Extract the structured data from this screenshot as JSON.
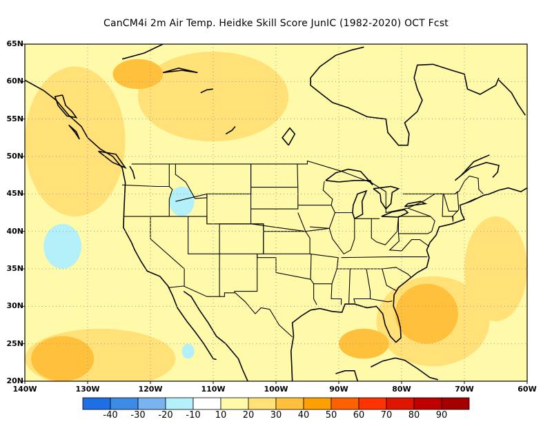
{
  "title": "CanCM4i  2m Air Temp. Heidke Skill Score JunIC (1982-2020) OCT Fcst",
  "map": {
    "lon_range": [
      -140,
      -60
    ],
    "lat_range": [
      20,
      65
    ],
    "lat_labels": [
      {
        "lat": 65,
        "text": "65N"
      },
      {
        "lat": 60,
        "text": "60N"
      },
      {
        "lat": 55,
        "text": "55N"
      },
      {
        "lat": 50,
        "text": "50N"
      },
      {
        "lat": 45,
        "text": "45N"
      },
      {
        "lat": 40,
        "text": "40N"
      },
      {
        "lat": 35,
        "text": "35N"
      },
      {
        "lat": 30,
        "text": "30N"
      },
      {
        "lat": 25,
        "text": "25N"
      },
      {
        "lat": 20,
        "text": "20N"
      }
    ],
    "lon_labels": [
      {
        "lon": -140,
        "text": "140W"
      },
      {
        "lon": -130,
        "text": "130W"
      },
      {
        "lon": -120,
        "text": "120W"
      },
      {
        "lon": -110,
        "text": "110W"
      },
      {
        "lon": -100,
        "text": "100W"
      },
      {
        "lon": -90,
        "text": "90W"
      },
      {
        "lon": -80,
        "text": "80W"
      },
      {
        "lon": -70,
        "text": "70W"
      },
      {
        "lon": -60,
        "text": "60W"
      }
    ],
    "grid": "dotted"
  },
  "colorbar": {
    "colors": [
      "#1e6ee6",
      "#3c8ce6",
      "#78b4f0",
      "#b4f0fa",
      "#ffffff",
      "#fffaaa",
      "#ffe178",
      "#ffc03c",
      "#ffa000",
      "#ff6000",
      "#ff3200",
      "#e11400",
      "#c00000",
      "#a50000"
    ],
    "labels": [
      "-40",
      "-30",
      "-20",
      "-10",
      "10",
      "20",
      "30",
      "40",
      "50",
      "60",
      "70",
      "80",
      "90"
    ]
  },
  "regions": [
    {
      "level": 5,
      "lon": -130,
      "lat": 40,
      "rx": 10,
      "ry": 20
    },
    {
      "level": 5,
      "lon": -135,
      "lat": 28,
      "rx": 6,
      "ry": 8
    },
    {
      "level": 5,
      "lon": -80,
      "lat": 55,
      "rx": 15,
      "ry": 10
    },
    {
      "level": 6,
      "lon": -132,
      "lat": 52,
      "rx": 8,
      "ry": 10
    },
    {
      "level": 6,
      "lon": -128,
      "lat": 23,
      "rx": 12,
      "ry": 4
    },
    {
      "level": 6,
      "lon": -75,
      "lat": 28,
      "rx": 9,
      "ry": 6
    },
    {
      "level": 6,
      "lon": -110,
      "lat": 58,
      "rx": 12,
      "ry": 6
    },
    {
      "level": 6,
      "lon": -65,
      "lat": 35,
      "rx": 5,
      "ry": 7
    },
    {
      "level": 7,
      "lon": -134,
      "lat": 23,
      "rx": 5,
      "ry": 3
    },
    {
      "level": 7,
      "lon": -76,
      "lat": 29,
      "rx": 5,
      "ry": 4
    },
    {
      "level": 7,
      "lon": -122,
      "lat": 61,
      "rx": 4,
      "ry": 2
    },
    {
      "level": 7,
      "lon": -86,
      "lat": 25,
      "rx": 4,
      "ry": 2
    },
    {
      "level": 3,
      "lon": -134,
      "lat": 38,
      "rx": 3,
      "ry": 3
    },
    {
      "level": 3,
      "lon": -115,
      "lat": 44,
      "rx": 2,
      "ry": 2
    },
    {
      "level": 3,
      "lon": -114,
      "lat": 24,
      "rx": 1,
      "ry": 1
    }
  ]
}
